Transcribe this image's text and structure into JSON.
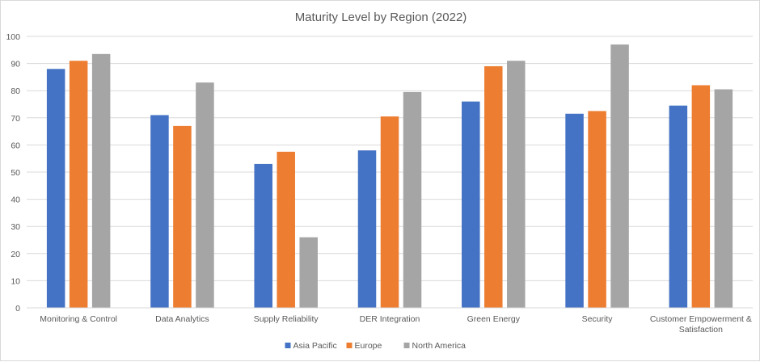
{
  "chart_data": {
    "type": "bar",
    "title": "Maturity Level by Region (2022)",
    "xlabel": "",
    "ylabel": "",
    "ylim": [
      0,
      100
    ],
    "yticks": [
      0,
      10,
      20,
      30,
      40,
      50,
      60,
      70,
      80,
      90,
      100
    ],
    "grid": true,
    "legend_position": "bottom",
    "categories": [
      "Monitoring & Control",
      "Data Analytics",
      "Supply Reliability",
      "DER Integration",
      "Green Energy",
      "Security",
      "Customer Empowerment & Satisfaction"
    ],
    "category_lines": [
      [
        "Monitoring & Control"
      ],
      [
        "Data Analytics"
      ],
      [
        "Supply Reliability"
      ],
      [
        "DER Integration"
      ],
      [
        "Green Energy"
      ],
      [
        "Security"
      ],
      [
        "Customer Empowerment &",
        "Satisfaction"
      ]
    ],
    "series": [
      {
        "name": "Asia Pacific",
        "color": "#4472c4",
        "values": [
          88,
          71,
          53,
          58,
          76,
          71.5,
          74.5
        ]
      },
      {
        "name": "Europe",
        "color": "#ed7d31",
        "values": [
          91,
          67,
          57.5,
          70.5,
          89,
          72.5,
          82
        ]
      },
      {
        "name": "North America",
        "color": "#a5a5a5",
        "values": [
          93.5,
          83,
          26,
          79.5,
          91,
          97,
          80.5
        ]
      }
    ]
  }
}
